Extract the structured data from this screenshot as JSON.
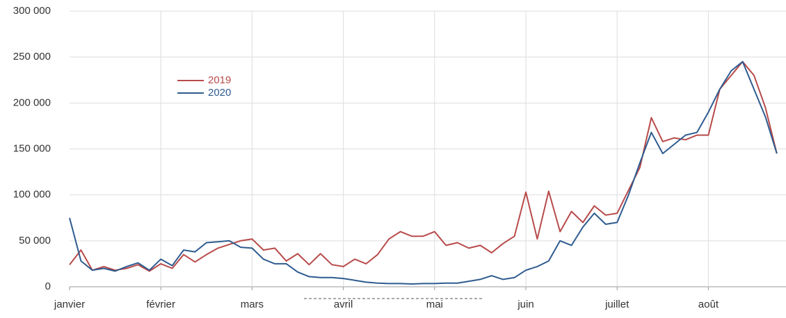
{
  "chart_data": {
    "type": "line",
    "categories": [
      "janvier",
      null,
      null,
      null,
      null,
      null,
      null,
      null,
      "février",
      null,
      null,
      null,
      null,
      null,
      null,
      null,
      "mars",
      null,
      null,
      null,
      null,
      null,
      null,
      null,
      "avril",
      null,
      null,
      null,
      null,
      null,
      null,
      null,
      "mai",
      null,
      null,
      null,
      null,
      null,
      null,
      null,
      "juin",
      null,
      null,
      null,
      null,
      null,
      null,
      null,
      "juillet",
      null,
      null,
      null,
      null,
      null,
      null,
      null,
      "août",
      null,
      null,
      null,
      null,
      null,
      null
    ],
    "series": [
      {
        "name": "2019",
        "color": "#b84a4a",
        "values": [
          24000,
          40000,
          18000,
          22000,
          18000,
          20000,
          24000,
          17000,
          25000,
          20000,
          35000,
          27000,
          35000,
          42000,
          46000,
          50000,
          52000,
          40000,
          42000,
          28000,
          36000,
          24000,
          36000,
          24000,
          22000,
          30000,
          25000,
          35000,
          52000,
          60000,
          55000,
          55000,
          60000,
          45000,
          48000,
          42000,
          45000,
          37000,
          47000,
          55000,
          103000,
          52000,
          104000,
          60000,
          82000,
          70000,
          88000,
          78000,
          80000,
          105000,
          130000,
          184000,
          158000,
          162000,
          160000,
          165000,
          165000,
          215000,
          230000,
          245000,
          230000,
          195000,
          145000
        ]
      },
      {
        "name": "2020",
        "color": "#2e5b8f",
        "values": [
          75000,
          28000,
          18000,
          20000,
          17000,
          22000,
          26000,
          18000,
          30000,
          23000,
          40000,
          38000,
          48000,
          49000,
          50000,
          43000,
          42000,
          30000,
          25000,
          25000,
          16000,
          11000,
          10000,
          10000,
          9000,
          7000,
          5000,
          4000,
          3500,
          3500,
          3000,
          3500,
          3500,
          4000,
          4000,
          6000,
          8000,
          12000,
          8000,
          10000,
          18000,
          22000,
          28000,
          50000,
          45000,
          65000,
          80000,
          68000,
          70000,
          100000,
          135000,
          168000,
          145000,
          155000,
          165000,
          168000,
          190000,
          215000,
          235000,
          245000,
          215000,
          185000,
          145000
        ]
      }
    ],
    "ylim": [
      0,
      300000
    ],
    "yticks": [
      0,
      {
        "value": 50000,
        "label": "50 000"
      },
      {
        "value": 100000,
        "label": "100 000"
      },
      {
        "value": 150000,
        "label": "150 000"
      },
      {
        "value": 200000,
        "label": "200 000"
      },
      {
        "value": 250000,
        "label": "250 000"
      },
      {
        "value": 300000,
        "label": "300 000"
      }
    ],
    "grid": true
  }
}
